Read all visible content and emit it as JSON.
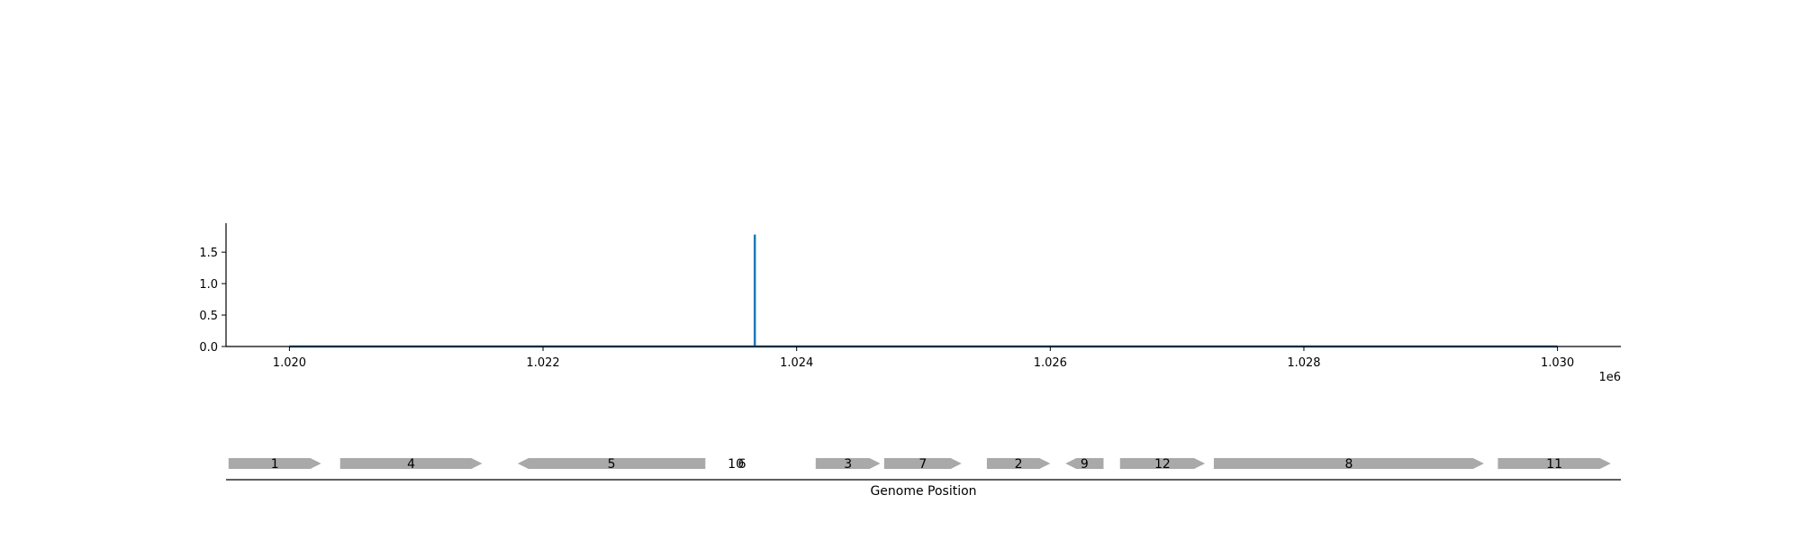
{
  "chart_data": [
    {
      "type": "line",
      "x_range": [
        1019500,
        1030500
      ],
      "ylim": [
        0,
        1.96
      ],
      "x_ticks": [
        1020000,
        1022000,
        1024000,
        1026000,
        1028000,
        1030000
      ],
      "x_tick_labels": [
        "1.020",
        "1.022",
        "1.024",
        "1.026",
        "1.028",
        "1.030"
      ],
      "x_offset_label": "1e6",
      "y_ticks": [
        0.0,
        0.5,
        1.0,
        1.5
      ],
      "y_tick_labels": [
        "0.0",
        "0.5",
        "1.0",
        "1.5"
      ],
      "line_color": "#1f77b4",
      "grid": false,
      "series": [
        {
          "x": [
            1020000,
            1023670,
            1023670,
            1023670,
            1023670,
            1030000
          ],
          "y": [
            0,
            0,
            0,
            1.78,
            0,
            0
          ]
        }
      ]
    },
    {
      "type": "gene_track",
      "x_range": [
        1019500,
        1030500
      ],
      "xlabel": "Genome Position",
      "gene_color": "#a9a9a9",
      "genes": [
        {
          "label": "1",
          "start": 1019520,
          "end": 1020250,
          "strand": "+"
        },
        {
          "label": "4",
          "start": 1020400,
          "end": 1021520,
          "strand": "+"
        },
        {
          "label": "5",
          "start": 1021800,
          "end": 1023280,
          "strand": "-"
        },
        {
          "label": "10",
          "start": 1023520,
          "end": 1023520,
          "strand": "+"
        },
        {
          "label": "6",
          "start": 1023570,
          "end": 1023570,
          "strand": "+"
        },
        {
          "label": "3",
          "start": 1024150,
          "end": 1024660,
          "strand": "+"
        },
        {
          "label": "7",
          "start": 1024690,
          "end": 1025300,
          "strand": "+"
        },
        {
          "label": "2",
          "start": 1025500,
          "end": 1026000,
          "strand": "+"
        },
        {
          "label": "9",
          "start": 1026120,
          "end": 1026420,
          "strand": "-"
        },
        {
          "label": "12",
          "start": 1026550,
          "end": 1027220,
          "strand": "+"
        },
        {
          "label": "8",
          "start": 1027290,
          "end": 1029420,
          "strand": "+"
        },
        {
          "label": "11",
          "start": 1029530,
          "end": 1030420,
          "strand": "+"
        }
      ]
    }
  ]
}
